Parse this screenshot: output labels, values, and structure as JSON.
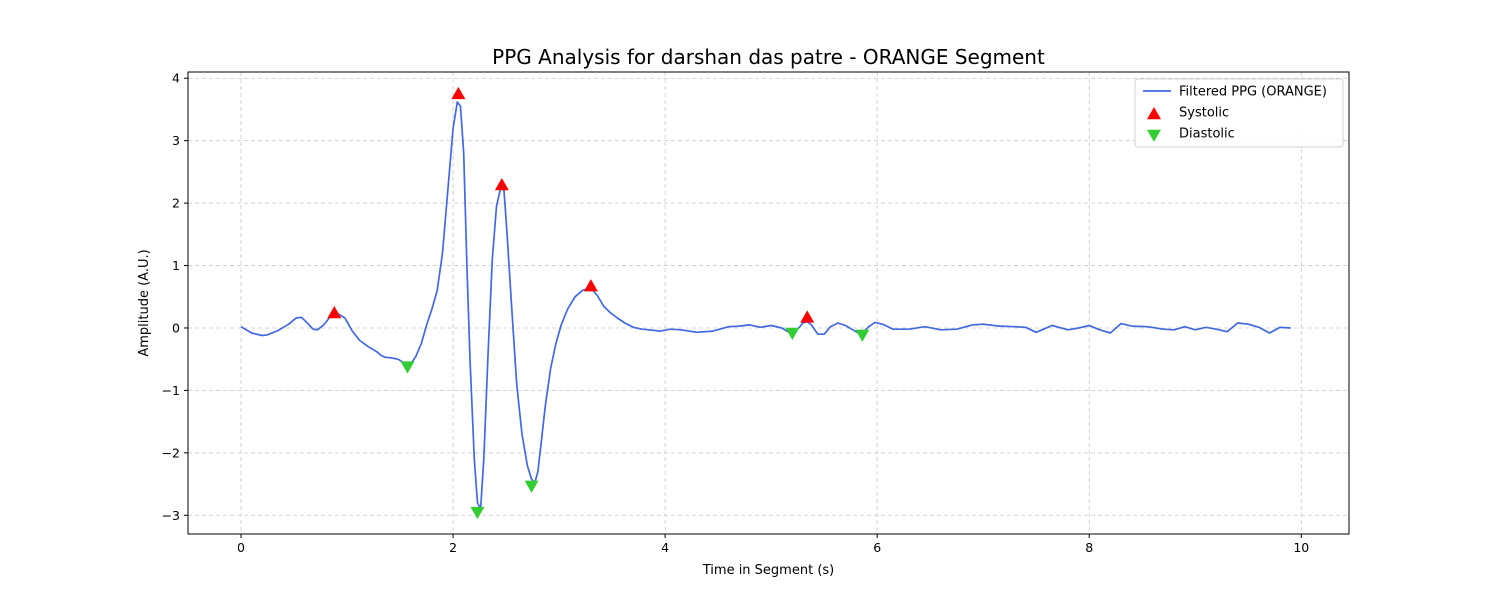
{
  "chart_data": {
    "type": "line",
    "title": "PPG Analysis for darshan das patre - ORANGE Segment",
    "xlabel": "Time in Segment (s)",
    "ylabel": "Amplitude (A.U.)",
    "xlim": [
      -0.5,
      10.45
    ],
    "ylim": [
      -3.3,
      4.1
    ],
    "grid": true,
    "legend_position": "top-right",
    "xticks": [
      0,
      2,
      4,
      6,
      8,
      10
    ],
    "xtick_labels": [
      "0",
      "2",
      "4",
      "6",
      "8",
      "10"
    ],
    "yticks": [
      -3,
      -2,
      -1,
      0,
      1,
      2,
      3,
      4
    ],
    "ytick_labels": [
      "−3",
      "−2",
      "−1",
      "0",
      "1",
      "2",
      "3",
      "4"
    ],
    "series": [
      {
        "name": "Filtered PPG (ORANGE)",
        "type": "line",
        "color": "#4169e1",
        "x": [
          0,
          0.1,
          0.2,
          0.25,
          0.35,
          0.45,
          0.52,
          0.57,
          0.62,
          0.68,
          0.72,
          0.78,
          0.86,
          0.92,
          0.98,
          1.05,
          1.12,
          1.2,
          1.28,
          1.32,
          1.36,
          1.42,
          1.48,
          1.52,
          1.56,
          1.6,
          1.65,
          1.7,
          1.75,
          1.8,
          1.85,
          1.9,
          1.95,
          2.0,
          2.04,
          2.07,
          2.1,
          2.13,
          2.16,
          2.2,
          2.23,
          2.26,
          2.29,
          2.33,
          2.37,
          2.41,
          2.45,
          2.48,
          2.51,
          2.55,
          2.6,
          2.65,
          2.7,
          2.74,
          2.77,
          2.8,
          2.83,
          2.87,
          2.92,
          2.97,
          3.02,
          3.08,
          3.15,
          3.22,
          3.27,
          3.31,
          3.36,
          3.42,
          3.48,
          3.55,
          3.62,
          3.7,
          3.78,
          3.85,
          3.95,
          4.05,
          4.15,
          4.3,
          4.45,
          4.6,
          4.7,
          4.8,
          4.9,
          5.0,
          5.1,
          5.18,
          5.2,
          5.26,
          5.3,
          5.34,
          5.38,
          5.44,
          5.5,
          5.56,
          5.63,
          5.7,
          5.77,
          5.84,
          5.86,
          5.92,
          5.98,
          6.05,
          6.15,
          6.3,
          6.45,
          6.6,
          6.75,
          6.9,
          7.0,
          7.15,
          7.3,
          7.4,
          7.5,
          7.65,
          7.8,
          7.9,
          8.0,
          8.1,
          8.2,
          8.3,
          8.4,
          8.55,
          8.7,
          8.8,
          8.9,
          9.0,
          9.1,
          9.2,
          9.3,
          9.4,
          9.5,
          9.6,
          9.7,
          9.8,
          9.9
        ],
        "y": [
          0.02,
          -0.08,
          -0.12,
          -0.11,
          -0.04,
          0.06,
          0.16,
          0.17,
          0.09,
          -0.02,
          -0.03,
          0.05,
          0.22,
          0.22,
          0.16,
          -0.05,
          -0.2,
          -0.3,
          -0.38,
          -0.44,
          -0.47,
          -0.48,
          -0.5,
          -0.54,
          -0.6,
          -0.58,
          -0.45,
          -0.25,
          0.05,
          0.3,
          0.6,
          1.2,
          2.2,
          3.2,
          3.62,
          3.55,
          2.8,
          1.0,
          -0.5,
          -2.1,
          -2.8,
          -2.9,
          -2.1,
          -0.4,
          1.1,
          1.95,
          2.25,
          2.2,
          1.5,
          0.4,
          -0.9,
          -1.7,
          -2.2,
          -2.42,
          -2.48,
          -2.3,
          -1.85,
          -1.25,
          -0.65,
          -0.25,
          0.05,
          0.3,
          0.5,
          0.6,
          0.63,
          0.62,
          0.52,
          0.35,
          0.25,
          0.16,
          0.08,
          0.01,
          -0.02,
          -0.03,
          -0.05,
          -0.02,
          -0.03,
          -0.07,
          -0.05,
          0.02,
          0.03,
          0.05,
          0.01,
          0.04,
          0.0,
          -0.08,
          -0.07,
          0.0,
          0.08,
          0.1,
          0.05,
          -0.1,
          -0.1,
          0.02,
          0.08,
          0.04,
          -0.03,
          -0.1,
          -0.08,
          0.02,
          0.09,
          0.06,
          -0.02,
          -0.02,
          0.02,
          -0.03,
          -0.02,
          0.05,
          0.06,
          0.03,
          0.02,
          0.01,
          -0.07,
          0.04,
          -0.03,
          0.0,
          0.04,
          -0.03,
          -0.08,
          0.07,
          0.03,
          0.02,
          -0.02,
          -0.03,
          0.02,
          -0.03,
          0.01,
          -0.02,
          -0.06,
          0.08,
          0.06,
          0.01,
          -0.08,
          0.01,
          0.0
        ]
      },
      {
        "name": "Systolic",
        "type": "scatter",
        "marker": "triangle-up",
        "color": "#ff0000",
        "x": [
          0.88,
          2.05,
          2.46,
          3.3,
          5.34
        ],
        "y": [
          0.24,
          3.75,
          2.29,
          0.67,
          0.17
        ]
      },
      {
        "name": "Diastolic",
        "type": "scatter",
        "marker": "triangle-down",
        "color": "#33cc33",
        "x": [
          1.57,
          2.23,
          2.74,
          5.2,
          5.86
        ],
        "y": [
          -0.62,
          -2.95,
          -2.53,
          -0.08,
          -0.11
        ]
      }
    ]
  }
}
